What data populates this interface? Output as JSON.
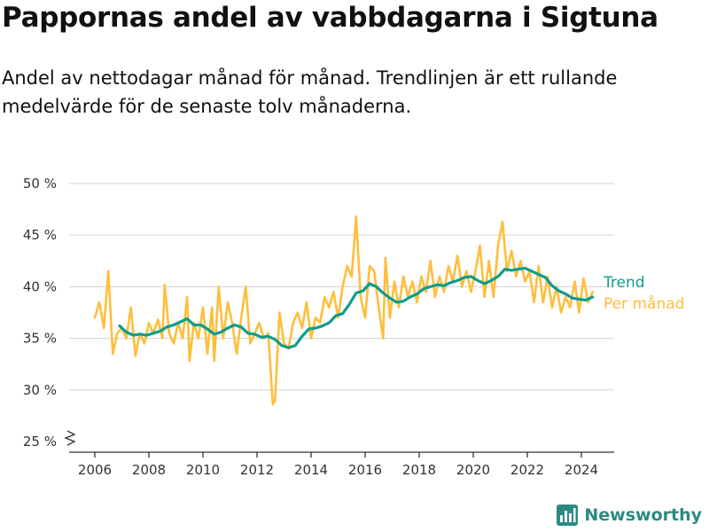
{
  "header": {
    "title": "Pappornas andel av vabbdagarna i Sigtuna",
    "subtitle": "Andel av nettodagar månad för månad. Trendlinjen är ett rullande medelvärde för de senaste tolv månaderna."
  },
  "brand": {
    "name": "Newsworthy",
    "logo_icon": "bar-chart-logo-icon",
    "color": "#2b8a84"
  },
  "chart_data": {
    "type": "line",
    "title": "Pappornas andel av vabbdagarna i Sigtuna",
    "subtitle": "Andel av nettodagar månad för månad. Trendlinjen är ett rullande medelvärde för de senaste tolv månaderna.",
    "xlabel": "",
    "ylabel": "",
    "x_ticks": [
      "2006",
      "2008",
      "2010",
      "2012",
      "2014",
      "2016",
      "2018",
      "2020",
      "2022",
      "2024"
    ],
    "y_ticks": [
      "25 %",
      "30 %",
      "35 %",
      "40 %",
      "45 %",
      "50 %"
    ],
    "ylim": [
      25,
      50
    ],
    "y_axis_break": true,
    "grid": "horizontal",
    "legend_placement": "right, at line ends",
    "series": [
      {
        "name": "Trend",
        "color": "#0f9c8c",
        "points": [
          [
            "2006-12",
            36.2
          ],
          [
            "2007-03",
            35.6
          ],
          [
            "2007-06",
            35.3
          ],
          [
            "2007-09",
            35.4
          ],
          [
            "2007-12",
            35.3
          ],
          [
            "2008-03",
            35.5
          ],
          [
            "2008-06",
            35.7
          ],
          [
            "2008-09",
            36.1
          ],
          [
            "2008-12",
            36.3
          ],
          [
            "2009-03",
            36.6
          ],
          [
            "2009-06",
            36.9
          ],
          [
            "2009-09",
            36.3
          ],
          [
            "2009-12",
            36.3
          ],
          [
            "2010-03",
            35.9
          ],
          [
            "2010-06",
            35.4
          ],
          [
            "2010-09",
            35.6
          ],
          [
            "2010-12",
            36.0
          ],
          [
            "2011-03",
            36.3
          ],
          [
            "2011-06",
            36.1
          ],
          [
            "2011-09",
            35.5
          ],
          [
            "2011-12",
            35.4
          ],
          [
            "2012-03",
            35.1
          ],
          [
            "2012-06",
            35.2
          ],
          [
            "2012-09",
            34.9
          ],
          [
            "2012-12",
            34.3
          ],
          [
            "2013-03",
            34.1
          ],
          [
            "2013-06",
            34.3
          ],
          [
            "2013-09",
            35.2
          ],
          [
            "2013-12",
            35.9
          ],
          [
            "2014-03",
            36.0
          ],
          [
            "2014-06",
            36.2
          ],
          [
            "2014-09",
            36.5
          ],
          [
            "2014-12",
            37.2
          ],
          [
            "2015-03",
            37.4
          ],
          [
            "2015-06",
            38.3
          ],
          [
            "2015-09",
            39.4
          ],
          [
            "2015-12",
            39.6
          ],
          [
            "2016-03",
            40.3
          ],
          [
            "2016-06",
            40.0
          ],
          [
            "2016-09",
            39.4
          ],
          [
            "2016-12",
            38.9
          ],
          [
            "2017-03",
            38.5
          ],
          [
            "2017-06",
            38.6
          ],
          [
            "2017-09",
            39.0
          ],
          [
            "2017-12",
            39.3
          ],
          [
            "2018-03",
            39.8
          ],
          [
            "2018-06",
            40.0
          ],
          [
            "2018-09",
            40.2
          ],
          [
            "2018-12",
            40.1
          ],
          [
            "2019-03",
            40.4
          ],
          [
            "2019-06",
            40.6
          ],
          [
            "2019-09",
            40.9
          ],
          [
            "2019-12",
            41.0
          ],
          [
            "2020-03",
            40.6
          ],
          [
            "2020-06",
            40.3
          ],
          [
            "2020-09",
            40.6
          ],
          [
            "2020-12",
            41.0
          ],
          [
            "2021-03",
            41.7
          ],
          [
            "2021-06",
            41.6
          ],
          [
            "2021-09",
            41.7
          ],
          [
            "2021-12",
            41.8
          ],
          [
            "2022-03",
            41.5
          ],
          [
            "2022-06",
            41.2
          ],
          [
            "2022-09",
            40.9
          ],
          [
            "2022-12",
            40.1
          ],
          [
            "2023-03",
            39.6
          ],
          [
            "2023-06",
            39.3
          ],
          [
            "2023-09",
            38.9
          ],
          [
            "2023-12",
            38.8
          ],
          [
            "2024-03",
            38.7
          ],
          [
            "2024-06",
            39.0
          ]
        ]
      },
      {
        "name": "Per månad",
        "color": "#ffbe3c",
        "points": [
          [
            "2006-01",
            37.0
          ],
          [
            "2006-03",
            38.5
          ],
          [
            "2006-05",
            36.0
          ],
          [
            "2006-07",
            41.5
          ],
          [
            "2006-09",
            33.5
          ],
          [
            "2006-11",
            35.5
          ],
          [
            "2007-01",
            36.0
          ],
          [
            "2007-03",
            35.0
          ],
          [
            "2007-05",
            38.0
          ],
          [
            "2007-07",
            33.3
          ],
          [
            "2007-09",
            35.5
          ],
          [
            "2007-11",
            34.5
          ],
          [
            "2008-01",
            36.5
          ],
          [
            "2008-03",
            35.5
          ],
          [
            "2008-05",
            36.8
          ],
          [
            "2008-07",
            35.0
          ],
          [
            "2008-08",
            40.2
          ],
          [
            "2008-10",
            35.5
          ],
          [
            "2008-12",
            34.5
          ],
          [
            "2009-02",
            36.5
          ],
          [
            "2009-04",
            35.0
          ],
          [
            "2009-06",
            39.0
          ],
          [
            "2009-07",
            32.8
          ],
          [
            "2009-09",
            36.5
          ],
          [
            "2009-11",
            35.0
          ],
          [
            "2010-01",
            38.0
          ],
          [
            "2010-03",
            33.5
          ],
          [
            "2010-05",
            38.0
          ],
          [
            "2010-06",
            32.8
          ],
          [
            "2010-08",
            40.0
          ],
          [
            "2010-10",
            35.0
          ],
          [
            "2010-12",
            38.5
          ],
          [
            "2011-02",
            36.5
          ],
          [
            "2011-04",
            33.5
          ],
          [
            "2011-06",
            37.0
          ],
          [
            "2011-08",
            40.0
          ],
          [
            "2011-10",
            34.5
          ],
          [
            "2011-12",
            35.5
          ],
          [
            "2012-02",
            36.5
          ],
          [
            "2012-04",
            35.0
          ],
          [
            "2012-06",
            35.5
          ],
          [
            "2012-08",
            28.6
          ],
          [
            "2012-09",
            29.0
          ],
          [
            "2012-11",
            37.5
          ],
          [
            "2013-01",
            34.5
          ],
          [
            "2013-03",
            34.0
          ],
          [
            "2013-05",
            36.5
          ],
          [
            "2013-07",
            37.5
          ],
          [
            "2013-09",
            36.0
          ],
          [
            "2013-11",
            38.5
          ],
          [
            "2014-01",
            35.0
          ],
          [
            "2014-03",
            37.0
          ],
          [
            "2014-05",
            36.5
          ],
          [
            "2014-07",
            39.0
          ],
          [
            "2014-09",
            38.0
          ],
          [
            "2014-11",
            39.5
          ],
          [
            "2015-01",
            37.0
          ],
          [
            "2015-03",
            40.0
          ],
          [
            "2015-05",
            42.0
          ],
          [
            "2015-07",
            41.0
          ],
          [
            "2015-09",
            46.8
          ],
          [
            "2015-11",
            39.0
          ],
          [
            "2016-01",
            37.0
          ],
          [
            "2016-03",
            42.0
          ],
          [
            "2016-05",
            41.5
          ],
          [
            "2016-07",
            38.0
          ],
          [
            "2016-09",
            35.0
          ],
          [
            "2016-10",
            42.8
          ],
          [
            "2016-12",
            37.0
          ],
          [
            "2017-02",
            40.5
          ],
          [
            "2017-04",
            38.0
          ],
          [
            "2017-06",
            41.0
          ],
          [
            "2017-08",
            39.0
          ],
          [
            "2017-10",
            40.5
          ],
          [
            "2017-12",
            38.5
          ],
          [
            "2018-02",
            41.0
          ],
          [
            "2018-04",
            39.5
          ],
          [
            "2018-06",
            42.5
          ],
          [
            "2018-08",
            39.0
          ],
          [
            "2018-10",
            41.0
          ],
          [
            "2018-12",
            39.5
          ],
          [
            "2019-02",
            42.0
          ],
          [
            "2019-04",
            40.5
          ],
          [
            "2019-06",
            43.0
          ],
          [
            "2019-08",
            40.0
          ],
          [
            "2019-10",
            41.5
          ],
          [
            "2019-12",
            39.5
          ],
          [
            "2020-02",
            41.5
          ],
          [
            "2020-04",
            44.0
          ],
          [
            "2020-06",
            39.0
          ],
          [
            "2020-08",
            42.5
          ],
          [
            "2020-10",
            39.0
          ],
          [
            "2020-12",
            44.0
          ],
          [
            "2021-02",
            46.3
          ],
          [
            "2021-04",
            41.5
          ],
          [
            "2021-06",
            43.5
          ],
          [
            "2021-08",
            41.0
          ],
          [
            "2021-10",
            42.5
          ],
          [
            "2021-12",
            40.5
          ],
          [
            "2022-02",
            41.5
          ],
          [
            "2022-04",
            38.5
          ],
          [
            "2022-06",
            42.0
          ],
          [
            "2022-08",
            38.5
          ],
          [
            "2022-10",
            41.0
          ],
          [
            "2022-12",
            38.0
          ],
          [
            "2023-02",
            40.0
          ],
          [
            "2023-04",
            37.5
          ],
          [
            "2023-06",
            39.0
          ],
          [
            "2023-08",
            38.0
          ],
          [
            "2023-10",
            40.5
          ],
          [
            "2023-12",
            37.5
          ],
          [
            "2024-02",
            40.8
          ],
          [
            "2024-04",
            38.5
          ],
          [
            "2024-06",
            39.5
          ]
        ]
      }
    ]
  }
}
